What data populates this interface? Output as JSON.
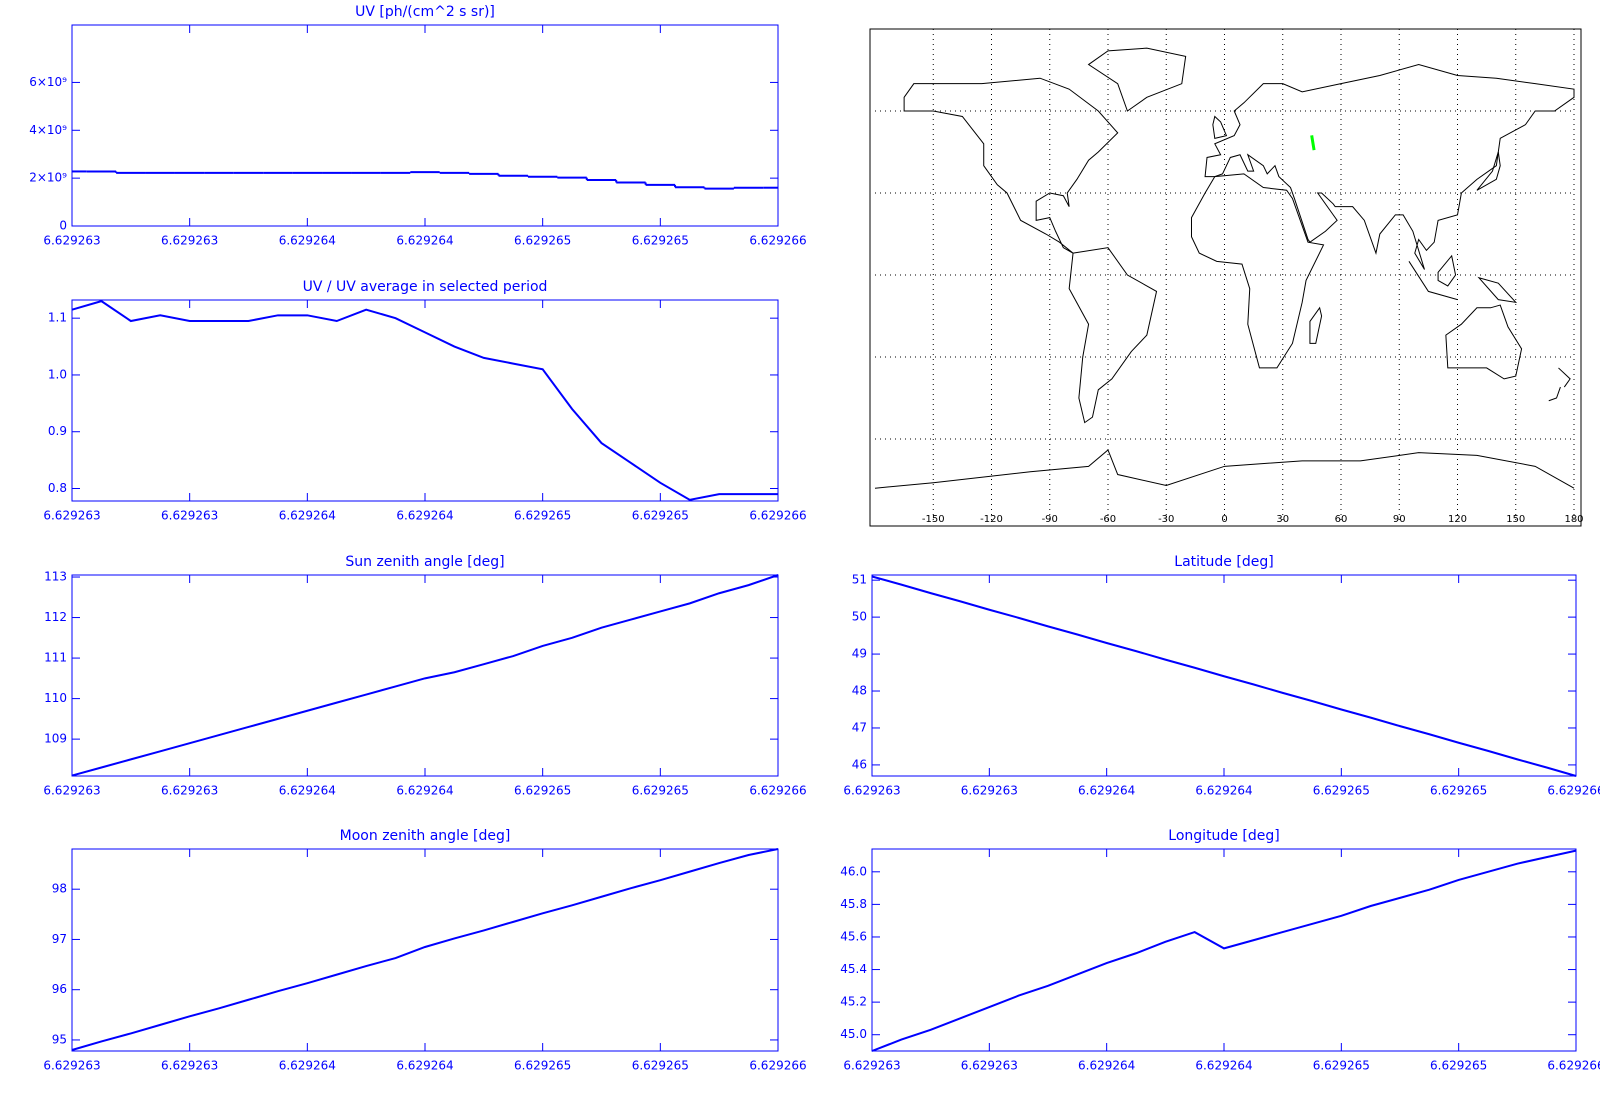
{
  "chart_data": [
    {
      "type": "line",
      "title": "UV [ph/(cm^2 s sr)]",
      "step": true,
      "color": "#0000ff",
      "x": [
        6.629263,
        6.629263125,
        6.62926325,
        6.629263375,
        6.6292635,
        6.629263625,
        6.62926375,
        6.629263875,
        6.629264,
        6.629264125,
        6.62926425,
        6.629264375,
        6.6292645,
        6.629264625,
        6.62926475,
        6.629264875,
        6.629265,
        6.629265125,
        6.62926525,
        6.629265375,
        6.6292655,
        6.629265625,
        6.62926575,
        6.629265875,
        6.629266
      ],
      "values": [
        2280000000,
        2280000000,
        2220000000,
        2220000000,
        2220000000,
        2220000000,
        2220000000,
        2220000000,
        2220000000,
        2220000000,
        2220000000,
        2220000000,
        2250000000,
        2220000000,
        2180000000,
        2100000000,
        2060000000,
        2020000000,
        1920000000,
        1820000000,
        1720000000,
        1620000000,
        1560000000,
        1600000000,
        1600000000
      ],
      "xlim": [
        6.629263,
        6.629266
      ],
      "xticks": [
        6.629263,
        {
          "value": 6.6292635,
          "label": "6.629263"
        },
        6.629264,
        {
          "value": 6.6292645,
          "label": "6.629264"
        },
        6.629265,
        {
          "value": 6.6292655,
          "label": "6.629265"
        },
        6.629266
      ],
      "ylim": [
        0,
        8400000000
      ],
      "yticks": [
        0,
        {
          "value": 2000000000,
          "label": "2×10⁹"
        },
        {
          "value": 4000000000,
          "label": "4×10⁹"
        },
        {
          "value": 6000000000,
          "label": "6×10⁹"
        }
      ]
    },
    {
      "type": "line",
      "title": "UV / UV average in selected period",
      "color": "#0000ff",
      "x": [
        6.629263,
        6.629263125,
        6.62926325,
        6.629263375,
        6.6292635,
        6.629263625,
        6.62926375,
        6.629263875,
        6.629264,
        6.629264125,
        6.62926425,
        6.629264375,
        6.6292645,
        6.629264625,
        6.62926475,
        6.629264875,
        6.629265,
        6.629265125,
        6.62926525,
        6.629265375,
        6.6292655,
        6.629265625,
        6.62926575,
        6.629265875,
        6.629266
      ],
      "values": [
        1.115,
        1.13,
        1.095,
        1.105,
        1.095,
        1.095,
        1.095,
        1.105,
        1.105,
        1.095,
        1.115,
        1.1,
        1.075,
        1.05,
        1.03,
        1.02,
        1.01,
        0.94,
        0.88,
        0.845,
        0.81,
        0.78,
        0.79,
        0.79,
        0.79
      ],
      "xlim": [
        6.629263,
        6.629266
      ],
      "xticks": [
        6.629263,
        {
          "value": 6.6292635,
          "label": "6.629263"
        },
        6.629264,
        {
          "value": 6.6292645,
          "label": "6.629264"
        },
        6.629265,
        {
          "value": 6.6292655,
          "label": "6.629265"
        },
        6.629266
      ],
      "ylim": [
        0.778,
        1.132
      ],
      "yticks": [
        0.8,
        0.9,
        {
          "value": 1,
          "label": "1.0"
        },
        1.1
      ]
    },
    {
      "type": "map",
      "xlim": [
        -180,
        180
      ],
      "ylim": [
        -90,
        90
      ],
      "xticks": [
        -150,
        -120,
        -90,
        -60,
        -30,
        0,
        30,
        60,
        90,
        120,
        150,
        180
      ],
      "yticks": [
        -60,
        -30,
        0,
        30,
        60
      ],
      "series": [
        {
          "color": "#00ff00",
          "x": [
            44.9,
            46.13
          ],
          "values": [
            51.1,
            45.7
          ]
        }
      ]
    },
    {
      "type": "line",
      "title": "Sun zenith angle [deg]",
      "color": "#0000ff",
      "x": [
        6.629263,
        6.629263125,
        6.62926325,
        6.629263375,
        6.6292635,
        6.629263625,
        6.62926375,
        6.629263875,
        6.629264,
        6.629264125,
        6.62926425,
        6.629264375,
        6.6292645,
        6.629264625,
        6.62926475,
        6.629264875,
        6.629265,
        6.629265125,
        6.62926525,
        6.629265375,
        6.6292655,
        6.629265625,
        6.62926575,
        6.629265875,
        6.629266
      ],
      "values": [
        108.1,
        108.3,
        108.5,
        108.7,
        108.9,
        109.1,
        109.3,
        109.5,
        109.7,
        109.9,
        110.1,
        110.3,
        110.5,
        110.65,
        110.85,
        111.05,
        111.3,
        111.5,
        111.75,
        111.95,
        112.15,
        112.35,
        112.6,
        112.8,
        113.05
      ],
      "xlim": [
        6.629263,
        6.629266
      ],
      "xticks": [
        6.629263,
        {
          "value": 6.6292635,
          "label": "6.629263"
        },
        6.629264,
        {
          "value": 6.6292645,
          "label": "6.629264"
        },
        6.629265,
        {
          "value": 6.6292655,
          "label": "6.629265"
        },
        6.629266
      ],
      "ylim": [
        108.09,
        113.05
      ],
      "yticks": [
        109,
        110,
        111,
        112,
        113
      ]
    },
    {
      "type": "line",
      "title": "Latitude [deg]",
      "color": "#0000ff",
      "x": [
        6.629263,
        6.629263125,
        6.62926325,
        6.629263375,
        6.6292635,
        6.629263625,
        6.62926375,
        6.629263875,
        6.629264,
        6.629264125,
        6.62926425,
        6.629264375,
        6.6292645,
        6.629264625,
        6.62926475,
        6.629264875,
        6.629265,
        6.629265125,
        6.62926525,
        6.629265375,
        6.6292655,
        6.629265625,
        6.62926575,
        6.629265875,
        6.629266
      ],
      "values": [
        51.1,
        50.88,
        50.65,
        50.43,
        50.2,
        49.98,
        49.75,
        49.53,
        49.3,
        49.08,
        48.85,
        48.63,
        48.4,
        48.18,
        47.95,
        47.73,
        47.5,
        47.28,
        47.05,
        46.83,
        46.6,
        46.38,
        46.15,
        45.93,
        45.7
      ],
      "xlim": [
        6.629263,
        6.629266
      ],
      "xticks": [
        6.629263,
        {
          "value": 6.6292635,
          "label": "6.629263"
        },
        6.629264,
        {
          "value": 6.6292645,
          "label": "6.629264"
        },
        6.629265,
        {
          "value": 6.6292655,
          "label": "6.629265"
        },
        6.629266
      ],
      "ylim": [
        45.7,
        51.14
      ],
      "yticks": [
        46,
        47,
        48,
        49,
        50,
        51
      ]
    },
    {
      "type": "line",
      "title": "Moon zenith angle [deg]",
      "color": "#0000ff",
      "x": [
        6.629263,
        6.629263125,
        6.62926325,
        6.629263375,
        6.6292635,
        6.629263625,
        6.62926375,
        6.629263875,
        6.629264,
        6.629264125,
        6.62926425,
        6.629264375,
        6.6292645,
        6.629264625,
        6.62926475,
        6.629264875,
        6.629265,
        6.629265125,
        6.62926525,
        6.629265375,
        6.6292655,
        6.629265625,
        6.62926575,
        6.629265875,
        6.629266
      ],
      "values": [
        94.8,
        94.97,
        95.13,
        95.3,
        95.47,
        95.63,
        95.8,
        95.97,
        96.13,
        96.3,
        96.47,
        96.63,
        96.85,
        97.02,
        97.18,
        97.35,
        97.52,
        97.68,
        97.85,
        98.02,
        98.18,
        98.35,
        98.52,
        98.68,
        98.8
      ],
      "xlim": [
        6.629263,
        6.629266
      ],
      "xticks": [
        6.629263,
        {
          "value": 6.6292635,
          "label": "6.629263"
        },
        6.629264,
        {
          "value": 6.6292645,
          "label": "6.629264"
        },
        6.629265,
        {
          "value": 6.6292655,
          "label": "6.629265"
        },
        6.629266
      ],
      "ylim": [
        94.78,
        98.8
      ],
      "yticks": [
        95,
        96,
        97,
        98
      ]
    },
    {
      "type": "line",
      "title": "Longitude [deg]",
      "color": "#0000ff",
      "x": [
        6.629263,
        6.629263125,
        6.62926325,
        6.629263375,
        6.6292635,
        6.629263625,
        6.62926375,
        6.629263875,
        6.629264,
        6.629264125,
        6.62926425,
        6.629264375,
        6.6292645,
        6.629264625,
        6.62926475,
        6.629264875,
        6.629265,
        6.629265125,
        6.62926525,
        6.629265375,
        6.6292655,
        6.629265625,
        6.62926575,
        6.629265875,
        6.629266
      ],
      "values": [
        44.9,
        44.97,
        45.03,
        45.1,
        45.17,
        45.24,
        45.3,
        45.37,
        45.44,
        45.5,
        45.57,
        45.63,
        45.53,
        45.58,
        45.63,
        45.68,
        45.73,
        45.79,
        45.84,
        45.89,
        45.95,
        46.0,
        46.05,
        46.09,
        46.13
      ],
      "xlim": [
        6.629263,
        6.629266
      ],
      "xticks": [
        6.629263,
        {
          "value": 6.6292635,
          "label": "6.629263"
        },
        6.629264,
        {
          "value": 6.6292645,
          "label": "6.629264"
        },
        6.629265,
        {
          "value": 6.6292655,
          "label": "6.629265"
        },
        6.629266
      ],
      "ylim": [
        44.9,
        46.14
      ],
      "yticks": [
        {
          "value": 45,
          "label": "45.0"
        },
        45.2,
        45.4,
        45.6,
        45.8,
        {
          "value": 46,
          "label": "46.0"
        }
      ]
    }
  ]
}
